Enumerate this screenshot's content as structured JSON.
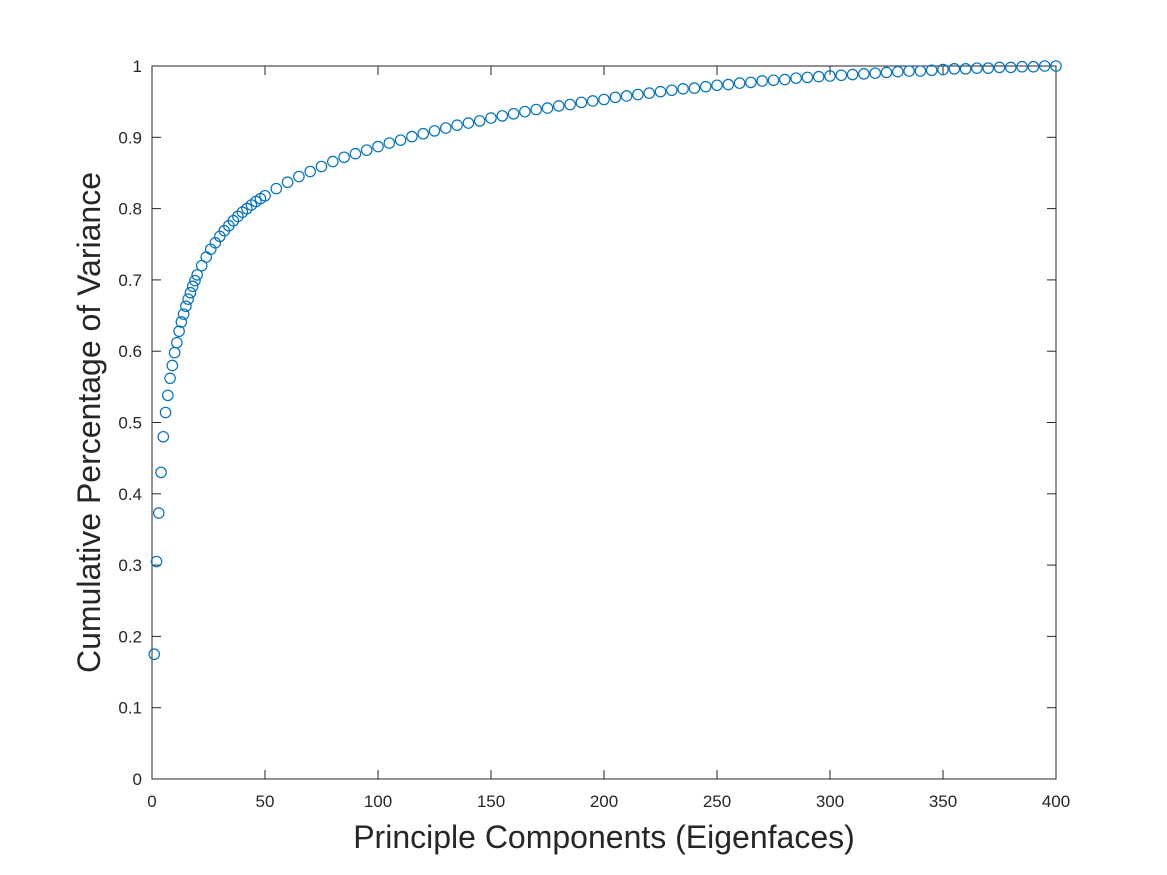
{
  "chart_data": {
    "type": "scatter",
    "title": "",
    "xlabel": "Principle Components (Eigenfaces)",
    "ylabel": "Cumulative Percentage of Variance",
    "xlim": [
      0,
      400
    ],
    "ylim": [
      0,
      1
    ],
    "x_ticks": [
      "0",
      "50",
      "100",
      "150",
      "200",
      "250",
      "300",
      "350",
      "400"
    ],
    "y_ticks": [
      "0",
      "0.1",
      "0.2",
      "0.3",
      "0.4",
      "0.5",
      "0.6",
      "0.7",
      "0.8",
      "0.9",
      "1"
    ],
    "grid": false,
    "box": true,
    "marker": "circle",
    "series_color": "#0072BD",
    "series": [
      {
        "x": [
          1,
          2,
          3,
          4,
          5,
          6,
          7,
          8,
          9,
          10,
          11,
          12,
          13,
          14,
          15,
          16,
          17,
          18,
          19,
          20,
          22,
          24,
          26,
          28,
          30,
          32,
          34,
          36,
          38,
          40,
          42,
          44,
          46,
          48,
          50,
          55,
          60,
          65,
          70,
          75,
          80,
          85,
          90,
          95,
          100,
          105,
          110,
          115,
          120,
          125,
          130,
          135,
          140,
          145,
          150,
          155,
          160,
          165,
          170,
          175,
          180,
          185,
          190,
          195,
          200,
          205,
          210,
          215,
          220,
          225,
          230,
          235,
          240,
          245,
          250,
          255,
          260,
          265,
          270,
          275,
          280,
          285,
          290,
          295,
          300,
          305,
          310,
          315,
          320,
          325,
          330,
          335,
          340,
          345,
          350,
          355,
          360,
          365,
          370,
          375,
          380,
          385,
          390,
          395,
          400
        ],
        "y": [
          0.175,
          0.305,
          0.373,
          0.43,
          0.48,
          0.514,
          0.538,
          0.562,
          0.58,
          0.598,
          0.612,
          0.628,
          0.641,
          0.652,
          0.663,
          0.673,
          0.682,
          0.691,
          0.699,
          0.707,
          0.72,
          0.732,
          0.743,
          0.752,
          0.761,
          0.769,
          0.776,
          0.783,
          0.789,
          0.795,
          0.8,
          0.805,
          0.81,
          0.814,
          0.818,
          0.828,
          0.837,
          0.845,
          0.852,
          0.859,
          0.866,
          0.872,
          0.877,
          0.882,
          0.887,
          0.892,
          0.896,
          0.901,
          0.905,
          0.909,
          0.913,
          0.917,
          0.92,
          0.923,
          0.927,
          0.93,
          0.933,
          0.936,
          0.939,
          0.941,
          0.944,
          0.946,
          0.949,
          0.951,
          0.953,
          0.956,
          0.958,
          0.96,
          0.962,
          0.964,
          0.966,
          0.968,
          0.969,
          0.971,
          0.973,
          0.974,
          0.976,
          0.977,
          0.979,
          0.98,
          0.981,
          0.983,
          0.984,
          0.985,
          0.986,
          0.987,
          0.988,
          0.989,
          0.99,
          0.991,
          0.992,
          0.993,
          0.993,
          0.994,
          0.995,
          0.996,
          0.996,
          0.997,
          0.997,
          0.998,
          0.998,
          0.999,
          0.999,
          1.0,
          1.0
        ]
      }
    ]
  }
}
